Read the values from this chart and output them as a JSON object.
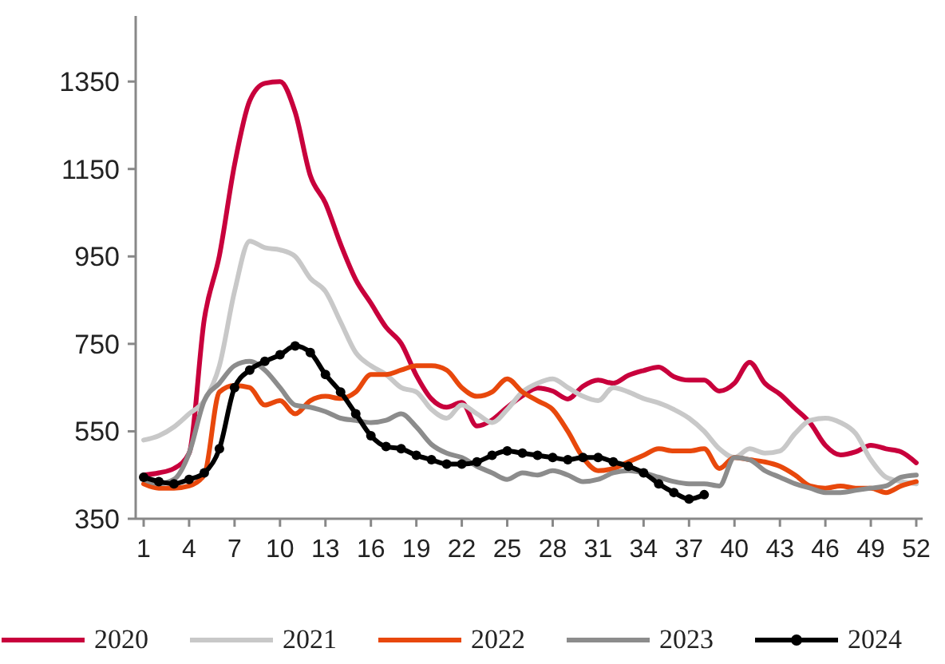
{
  "chart_data": {
    "type": "line",
    "categories": [
      "1",
      null,
      null,
      "4",
      null,
      null,
      "7",
      null,
      null,
      "10",
      null,
      null,
      "13",
      null,
      null,
      "16",
      null,
      null,
      "19",
      null,
      null,
      "22",
      null,
      null,
      "25",
      null,
      null,
      "28",
      null,
      null,
      "31",
      null,
      null,
      "34",
      null,
      null,
      "37",
      null,
      null,
      "40",
      null,
      null,
      "43",
      null,
      null,
      "46",
      null,
      null,
      "49",
      null,
      null,
      "52"
    ],
    "ylim": [
      350,
      1500
    ],
    "yticks": [
      350,
      550,
      750,
      950,
      1150,
      1350
    ],
    "grid": false,
    "legend": "bottom",
    "line_style": "solid",
    "series": [
      {
        "name": "2020",
        "color": "#c8003c",
        "marker": "none",
        "values": [
          450,
          455,
          465,
          500,
          806,
          952,
          1160,
          1306,
          1346,
          1350,
          1280,
          1135,
          1072,
          978,
          897,
          843,
          788,
          751,
          678,
          624,
          605,
          616,
          562,
          576,
          605,
          631,
          649,
          642,
          624,
          653,
          667,
          660,
          678,
          689,
          697,
          675,
          667,
          667,
          642,
          660,
          708,
          660,
          635,
          602,
          569,
          518,
          496,
          503,
          518,
          510,
          503,
          478
        ]
      },
      {
        "name": "2021",
        "color": "#c8c8c8",
        "marker": "none",
        "values": [
          530,
          540,
          560,
          590,
          620,
          700,
          870,
          985,
          970,
          965,
          950,
          900,
          870,
          800,
          730,
          700,
          680,
          650,
          640,
          600,
          580,
          610,
          590,
          570,
          600,
          640,
          660,
          670,
          650,
          630,
          620,
          650,
          640,
          625,
          615,
          600,
          580,
          550,
          510,
          490,
          510,
          500,
          505,
          545,
          575,
          580,
          570,
          545,
          485,
          445,
          435,
          430
        ]
      },
      {
        "name": "2022",
        "color": "#e8480c",
        "marker": "none",
        "values": [
          430,
          420,
          420,
          425,
          450,
          640,
          655,
          650,
          610,
          620,
          590,
          620,
          630,
          625,
          640,
          680,
          680,
          690,
          700,
          700,
          690,
          650,
          630,
          640,
          670,
          640,
          620,
          600,
          550,
          490,
          460,
          465,
          480,
          495,
          510,
          505,
          505,
          510,
          465,
          490,
          485,
          480,
          470,
          450,
          425,
          420,
          425,
          420,
          420,
          410,
          425,
          435
        ]
      },
      {
        "name": "2023",
        "color": "#8c8c8c",
        "marker": "none",
        "values": [
          440,
          430,
          440,
          500,
          620,
          660,
          700,
          710,
          690,
          650,
          610,
          605,
          595,
          580,
          575,
          570,
          575,
          590,
          560,
          520,
          500,
          490,
          470,
          455,
          440,
          455,
          450,
          460,
          450,
          435,
          440,
          455,
          460,
          455,
          445,
          435,
          430,
          430,
          425,
          490,
          485,
          460,
          445,
          430,
          420,
          410,
          410,
          415,
          420,
          425,
          445,
          450
        ]
      },
      {
        "name": "2024",
        "color": "#000000",
        "marker": "circle",
        "values": [
          445,
          435,
          430,
          440,
          455,
          510,
          650,
          690,
          710,
          725,
          745,
          730,
          680,
          640,
          590,
          540,
          515,
          510,
          495,
          485,
          475,
          475,
          480,
          495,
          505,
          500,
          495,
          490,
          485,
          490,
          490,
          480,
          470,
          455,
          430,
          410,
          395,
          405,
          null,
          null,
          null,
          null,
          null,
          null,
          null,
          null,
          null,
          null,
          null,
          null,
          null,
          null
        ]
      }
    ]
  }
}
